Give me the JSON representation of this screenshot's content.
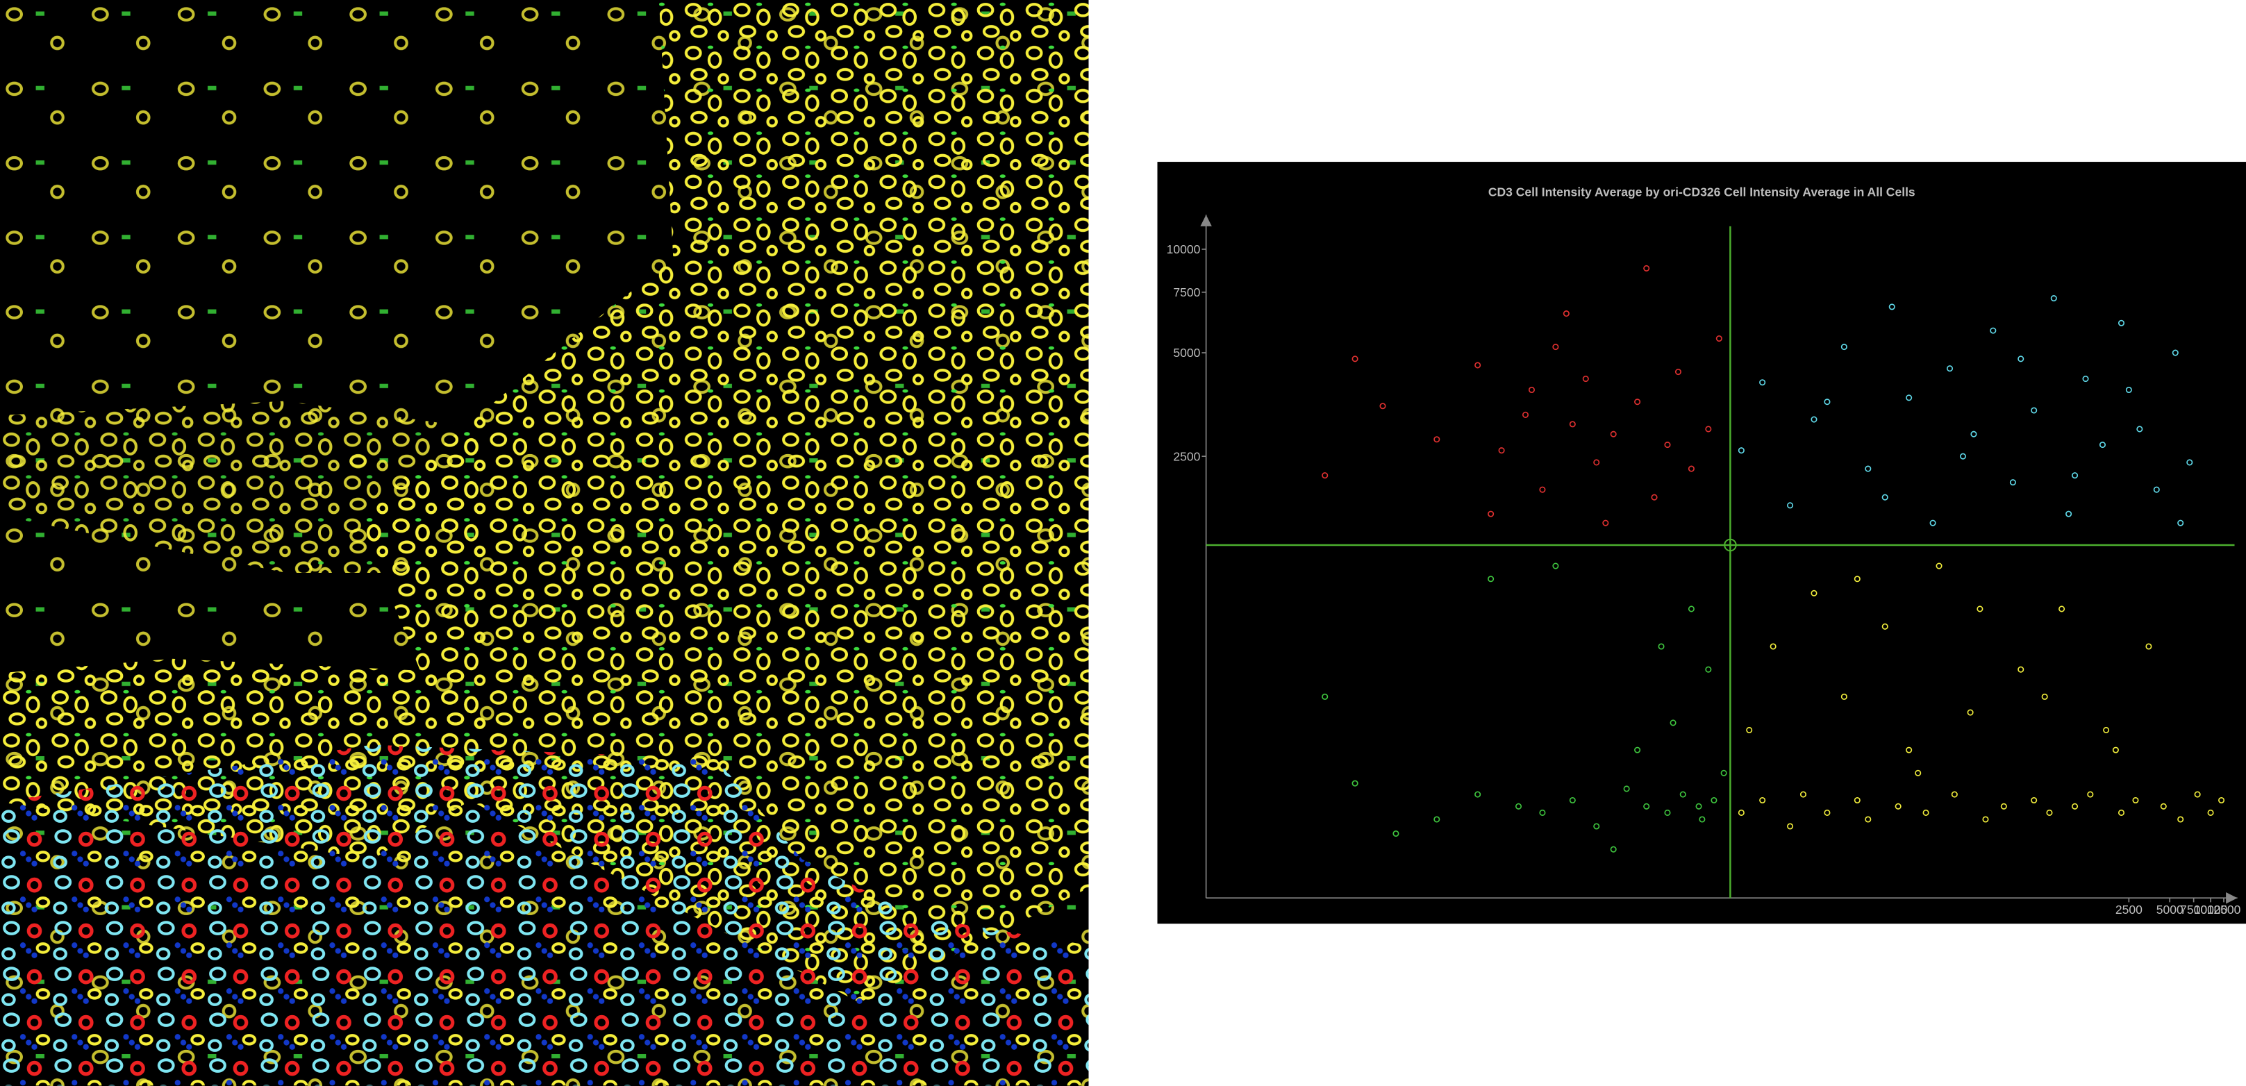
{
  "chart_data": {
    "type": "scatter",
    "title": "CD3 Cell Intensity Average by ori-CD326 Cell Intensity Average in All Cells",
    "xscale": "log",
    "yscale": "log",
    "xlim": [
      0.0004,
      15000
    ],
    "ylim": [
      130,
      12000
    ],
    "xticks": [
      2500,
      5000,
      7500,
      10000,
      12500
    ],
    "yticks": [
      10000,
      7500,
      5000,
      2500
    ],
    "gate": {
      "x": 2.9,
      "y": 1380,
      "color": "#4caf2e"
    },
    "series": [
      {
        "color": "#e03030",
        "x": [
          0.003,
          0.005,
          0.008,
          0.02,
          0.04,
          0.06,
          0.1,
          0.15,
          0.2,
          0.3,
          0.05,
          0.09,
          0.12,
          0.25,
          0.4,
          0.6,
          0.8,
          1,
          1.2,
          1.5,
          0.7,
          0.35,
          0.18,
          2,
          2.4
        ],
        "values": [
          2200,
          4800,
          3500,
          2800,
          4600,
          2600,
          3900,
          5200,
          3100,
          2400,
          1700,
          3300,
          2000,
          4200,
          2900,
          3600,
          1900,
          2700,
          4400,
          2300,
          8800,
          1600,
          6500,
          3000,
          5500
        ]
      },
      {
        "color": "#5fd8e8",
        "x": [
          3.5,
          5,
          8,
          12,
          20,
          30,
          45,
          60,
          90,
          120,
          180,
          250,
          350,
          500,
          700,
          900,
          1200,
          1600,
          2200,
          3000,
          4000,
          5500,
          7000,
          15,
          40,
          150,
          400,
          1000,
          2500,
          6000
        ],
        "values": [
          2600,
          4100,
          1800,
          3200,
          5200,
          2300,
          6800,
          3700,
          1600,
          4500,
          2900,
          5800,
          2100,
          3400,
          7200,
          1700,
          4200,
          2700,
          6100,
          3000,
          2000,
          5000,
          2400,
          3600,
          1900,
          2500,
          4800,
          2200,
          3900,
          1600
        ]
      },
      {
        "color": "#3ec43e",
        "x": [
          0.003,
          0.005,
          0.01,
          0.02,
          0.04,
          0.08,
          0.12,
          0.2,
          0.3,
          0.5,
          0.7,
          1,
          1.3,
          1.8,
          2.2,
          2.6,
          0.9,
          1.5,
          0.15,
          0.6,
          1.1,
          2,
          0.05,
          0.4,
          1.7
        ],
        "values": [
          500,
          280,
          200,
          220,
          260,
          240,
          230,
          250,
          210,
          270,
          240,
          230,
          260,
          220,
          250,
          300,
          700,
          900,
          1200,
          350,
          420,
          600,
          1100,
          180,
          240
        ]
      },
      {
        "color": "#f0ec3c",
        "x": [
          3.5,
          4,
          5,
          6,
          8,
          10,
          12,
          15,
          20,
          25,
          30,
          40,
          50,
          60,
          80,
          100,
          130,
          170,
          220,
          300,
          400,
          500,
          650,
          800,
          1000,
          1300,
          1700,
          2200,
          2800,
          3500,
          4500,
          6000,
          8000,
          10000,
          12000,
          25,
          70,
          200,
          600,
          2000
        ],
        "values": [
          230,
          400,
          250,
          700,
          210,
          260,
          1000,
          230,
          500,
          250,
          220,
          800,
          240,
          350,
          230,
          1200,
          260,
          450,
          220,
          240,
          600,
          250,
          230,
          900,
          240,
          260,
          400,
          230,
          250,
          700,
          240,
          220,
          260,
          230,
          250,
          1100,
          300,
          900,
          500,
          350
        ]
      }
    ]
  }
}
